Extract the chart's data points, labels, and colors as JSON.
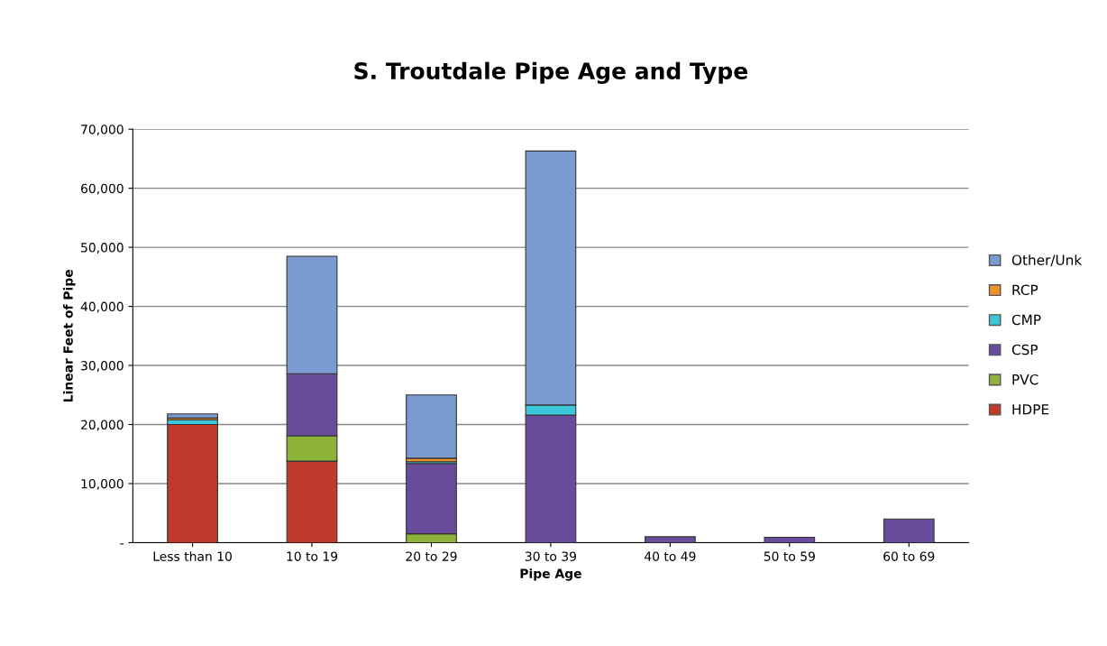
{
  "chart_data": {
    "type": "bar",
    "title": "S. Troutdale Pipe Age and Type",
    "xlabel": "Pipe Age",
    "ylabel": "Linear Feet of Pipe",
    "categories": [
      "Less than 10",
      "10 to 19",
      "20 to 29",
      "30 to 39",
      "40 to 49",
      "50 to 59",
      "60 to 69"
    ],
    "stacked": true,
    "series": [
      {
        "name": "HDPE",
        "color": "#c0392b",
        "values": [
          20000,
          13800,
          0,
          0,
          0,
          0,
          0
        ]
      },
      {
        "name": "PVC",
        "color": "#8db33a",
        "values": [
          0,
          4300,
          1500,
          0,
          0,
          0,
          0
        ]
      },
      {
        "name": "CSP",
        "color": "#6a4c9c",
        "values": [
          0,
          10500,
          11900,
          21600,
          1000,
          900,
          4000
        ]
      },
      {
        "name": "CMP",
        "color": "#3cc8d8",
        "values": [
          800,
          0,
          300,
          1700,
          0,
          0,
          0
        ]
      },
      {
        "name": "RCP",
        "color": "#f0922a",
        "values": [
          300,
          0,
          600,
          0,
          0,
          0,
          0
        ]
      },
      {
        "name": "Other/Unk",
        "color": "#7b9bd0",
        "values": [
          700,
          19900,
          10700,
          43000,
          0,
          0,
          0
        ]
      }
    ],
    "ylim": [
      0,
      70000
    ],
    "yticks": [
      {
        "value": 0,
        "label": "-"
      },
      {
        "value": 10000,
        "label": "10,000"
      },
      {
        "value": 20000,
        "label": "20,000"
      },
      {
        "value": 30000,
        "label": "30,000"
      },
      {
        "value": 40000,
        "label": "40,000"
      },
      {
        "value": 50000,
        "label": "50,000"
      },
      {
        "value": 60000,
        "label": "60,000"
      },
      {
        "value": 70000,
        "label": "70,000"
      }
    ],
    "grid": "y",
    "legend": "right"
  }
}
